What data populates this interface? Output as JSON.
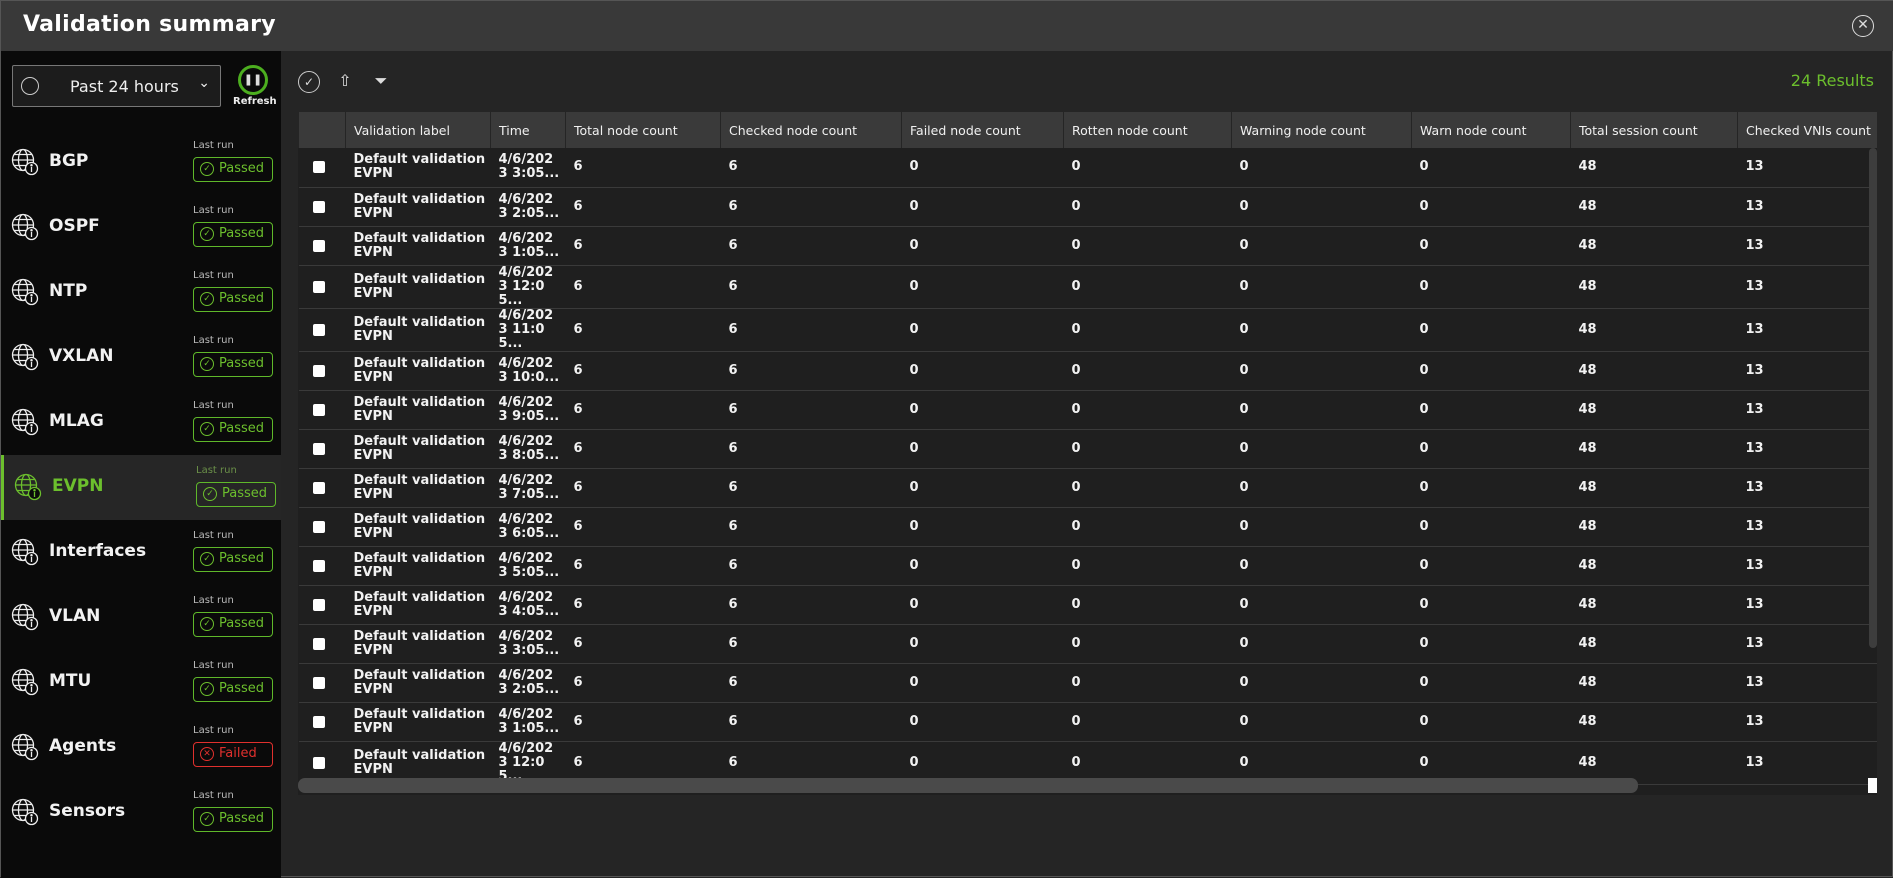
{
  "header": {
    "title": "Validation summary",
    "close_icon": "close-circle-icon"
  },
  "sidebar": {
    "time_range": "Past 24 hours",
    "refresh_label": "Refresh",
    "colors": {
      "passed": "#6cbf2d",
      "failed": "#e0302d"
    },
    "items": [
      {
        "name": "BGP",
        "last_run": "Last run",
        "status": "Passed"
      },
      {
        "name": "OSPF",
        "last_run": "Last run",
        "status": "Passed"
      },
      {
        "name": "NTP",
        "last_run": "Last run",
        "status": "Passed"
      },
      {
        "name": "VXLAN",
        "last_run": "Last run",
        "status": "Passed"
      },
      {
        "name": "MLAG",
        "last_run": "Last run",
        "status": "Passed"
      },
      {
        "name": "EVPN",
        "last_run": "Last run",
        "status": "Passed",
        "selected": true
      },
      {
        "name": "Interfaces",
        "last_run": "Last run",
        "status": "Passed"
      },
      {
        "name": "VLAN",
        "last_run": "Last run",
        "status": "Passed"
      },
      {
        "name": "MTU",
        "last_run": "Last run",
        "status": "Passed"
      },
      {
        "name": "Agents",
        "last_run": "Last run",
        "status": "Failed"
      },
      {
        "name": "Sensors",
        "last_run": "Last run",
        "status": "Passed"
      }
    ]
  },
  "toolbar": {
    "results": "24 Results",
    "icons": [
      "check-circle-icon",
      "export-icon",
      "filter-icon"
    ]
  },
  "table": {
    "columns": [
      "",
      "Validation label",
      "Time",
      "Total node count",
      "Checked node count",
      "Failed node count",
      "Rotten node count",
      "Warning node count",
      "Warn node count",
      "Total session count",
      "Checked VNIs count"
    ],
    "rows": [
      [
        "Default validation EVPN",
        "4/6/2023 3:05...",
        "6",
        "6",
        "0",
        "0",
        "0",
        "0",
        "48",
        "13"
      ],
      [
        "Default validation EVPN",
        "4/6/2023 2:05...",
        "6",
        "6",
        "0",
        "0",
        "0",
        "0",
        "48",
        "13"
      ],
      [
        "Default validation EVPN",
        "4/6/2023 1:05...",
        "6",
        "6",
        "0",
        "0",
        "0",
        "0",
        "48",
        "13"
      ],
      [
        "Default validation EVPN",
        "4/6/2023 12:05...",
        "6",
        "6",
        "0",
        "0",
        "0",
        "0",
        "48",
        "13"
      ],
      [
        "Default validation EVPN",
        "4/6/2023 11:05...",
        "6",
        "6",
        "0",
        "0",
        "0",
        "0",
        "48",
        "13"
      ],
      [
        "Default validation EVPN",
        "4/6/2023 10:0...",
        "6",
        "6",
        "0",
        "0",
        "0",
        "0",
        "48",
        "13"
      ],
      [
        "Default validation EVPN",
        "4/6/2023 9:05...",
        "6",
        "6",
        "0",
        "0",
        "0",
        "0",
        "48",
        "13"
      ],
      [
        "Default validation EVPN",
        "4/6/2023 8:05...",
        "6",
        "6",
        "0",
        "0",
        "0",
        "0",
        "48",
        "13"
      ],
      [
        "Default validation EVPN",
        "4/6/2023 7:05...",
        "6",
        "6",
        "0",
        "0",
        "0",
        "0",
        "48",
        "13"
      ],
      [
        "Default validation EVPN",
        "4/6/2023 6:05...",
        "6",
        "6",
        "0",
        "0",
        "0",
        "0",
        "48",
        "13"
      ],
      [
        "Default validation EVPN",
        "4/6/2023 5:05...",
        "6",
        "6",
        "0",
        "0",
        "0",
        "0",
        "48",
        "13"
      ],
      [
        "Default validation EVPN",
        "4/6/2023 4:05...",
        "6",
        "6",
        "0",
        "0",
        "0",
        "0",
        "48",
        "13"
      ],
      [
        "Default validation EVPN",
        "4/6/2023 3:05...",
        "6",
        "6",
        "0",
        "0",
        "0",
        "0",
        "48",
        "13"
      ],
      [
        "Default validation EVPN",
        "4/6/2023 2:05...",
        "6",
        "6",
        "0",
        "0",
        "0",
        "0",
        "48",
        "13"
      ],
      [
        "Default validation EVPN",
        "4/6/2023 1:05...",
        "6",
        "6",
        "0",
        "0",
        "0",
        "0",
        "48",
        "13"
      ],
      [
        "Default validation EVPN",
        "4/6/2023 12:05...",
        "6",
        "6",
        "0",
        "0",
        "0",
        "0",
        "48",
        "13"
      ]
    ]
  }
}
